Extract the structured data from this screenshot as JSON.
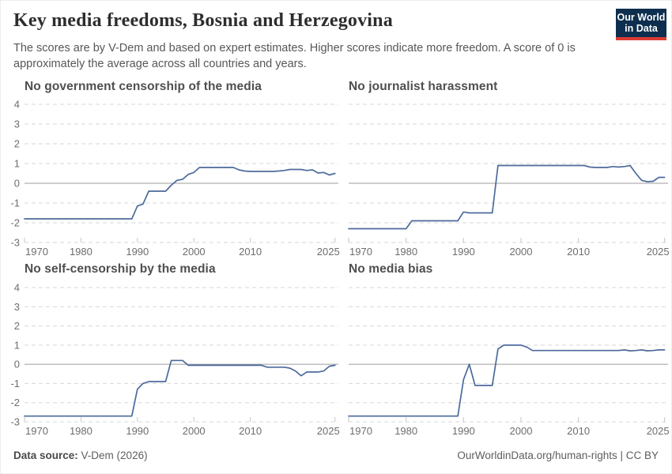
{
  "header": {
    "title": "Key media freedoms, Bosnia and Herzegovina",
    "subtitle": "The scores are by V-Dem and based on expert estimates. Higher scores indicate more freedom. A score of 0 is approximately the average across all countries and years.",
    "logo_line1": "Our World",
    "logo_line2": "in Data",
    "logo_bg": "#0d2e4e",
    "logo_accent": "#dc3b33"
  },
  "palette": {
    "line": "#4c6a9c",
    "grid": "#d7d7d7",
    "zero_line": "#9c9c9c",
    "tick_mark": "#c6c6c6",
    "axis_label": "#6d6d6d"
  },
  "chart_data": [
    {
      "type": "line",
      "title": "No government censorship of the media",
      "xlabel": "",
      "ylabel": "",
      "xlim": [
        1970,
        2025.6
      ],
      "ylim": [
        -3,
        4
      ],
      "yticks": [
        4,
        3,
        2,
        1,
        0,
        -1,
        -2,
        -3
      ],
      "xticks": [
        1970,
        1980,
        1990,
        2000,
        2010,
        2025
      ],
      "grid": "dashed-horizontal",
      "legend": "none",
      "line_color": "#4c6a9c",
      "x": [
        1970,
        1989,
        1990,
        1991,
        1992,
        1995,
        1996,
        1997,
        1998,
        1999,
        2000,
        2001,
        2007,
        2008,
        2009,
        2010,
        2014,
        2015,
        2016,
        2017,
        2019,
        2020,
        2021,
        2022,
        2023,
        2024,
        2025
      ],
      "values": [
        -1.8,
        -1.8,
        -1.15,
        -1.05,
        -0.4,
        -0.4,
        -0.1,
        0.15,
        0.2,
        0.45,
        0.55,
        0.8,
        0.8,
        0.68,
        0.62,
        0.6,
        0.6,
        0.62,
        0.65,
        0.7,
        0.7,
        0.65,
        0.68,
        0.52,
        0.55,
        0.42,
        0.5
      ]
    },
    {
      "type": "line",
      "title": "No journalist harassment",
      "xlabel": "",
      "ylabel": "",
      "xlim": [
        1970,
        2025.6
      ],
      "ylim": [
        -3,
        4
      ],
      "yticks": [
        4,
        3,
        2,
        1,
        0,
        -1,
        -2,
        -3
      ],
      "xticks": [
        1970,
        1980,
        1990,
        2000,
        2010,
        2025
      ],
      "grid": "dashed-horizontal",
      "legend": "none",
      "line_color": "#4c6a9c",
      "x": [
        1970,
        1980,
        1981,
        1989,
        1990,
        1991,
        1995,
        1996,
        2011,
        2012,
        2013,
        2015,
        2016,
        2017,
        2018,
        2019,
        2020,
        2021,
        2022,
        2023,
        2024,
        2025
      ],
      "values": [
        -2.3,
        -2.3,
        -1.9,
        -1.9,
        -1.45,
        -1.5,
        -1.5,
        0.9,
        0.9,
        0.82,
        0.8,
        0.8,
        0.85,
        0.82,
        0.85,
        0.9,
        0.5,
        0.15,
        0.08,
        0.1,
        0.3,
        0.3
      ]
    },
    {
      "type": "line",
      "title": "No self-censorship by the media",
      "xlabel": "",
      "ylabel": "",
      "xlim": [
        1970,
        2025.6
      ],
      "ylim": [
        -3,
        4
      ],
      "yticks": [
        4,
        3,
        2,
        1,
        0,
        -1,
        -2,
        -3
      ],
      "xticks": [
        1970,
        1980,
        1990,
        2000,
        2010,
        2025
      ],
      "grid": "dashed-horizontal",
      "legend": "none",
      "line_color": "#4c6a9c",
      "x": [
        1970,
        1989,
        1990,
        1991,
        1992,
        1995,
        1996,
        1998,
        1999,
        2012,
        2013,
        2016,
        2017,
        2018,
        2019,
        2020,
        2022,
        2023,
        2024,
        2025
      ],
      "values": [
        -2.7,
        -2.7,
        -1.3,
        -1.0,
        -0.9,
        -0.9,
        0.2,
        0.2,
        -0.05,
        -0.05,
        -0.15,
        -0.15,
        -0.2,
        -0.35,
        -0.6,
        -0.4,
        -0.4,
        -0.35,
        -0.1,
        -0.05
      ]
    },
    {
      "type": "line",
      "title": "No media bias",
      "xlabel": "",
      "ylabel": "",
      "xlim": [
        1970,
        2025.6
      ],
      "ylim": [
        -3,
        4
      ],
      "yticks": [
        4,
        3,
        2,
        1,
        0,
        -1,
        -2,
        -3
      ],
      "xticks": [
        1970,
        1980,
        1990,
        2000,
        2010,
        2025
      ],
      "grid": "dashed-horizontal",
      "legend": "none",
      "line_color": "#4c6a9c",
      "x": [
        1970,
        1989,
        1990,
        1991,
        1992,
        1995,
        1996,
        1997,
        2000,
        2001,
        2002,
        2017,
        2018,
        2019,
        2020,
        2021,
        2022,
        2023,
        2024,
        2025
      ],
      "values": [
        -2.7,
        -2.7,
        -0.8,
        0.0,
        -1.1,
        -1.1,
        0.8,
        1.0,
        1.0,
        0.9,
        0.72,
        0.72,
        0.75,
        0.7,
        0.72,
        0.75,
        0.7,
        0.72,
        0.75,
        0.75
      ]
    }
  ],
  "footer": {
    "source_label": "Data source:",
    "source_value": "V-Dem (2026)",
    "right_text": "OurWorldinData.org/human-rights | CC BY"
  }
}
